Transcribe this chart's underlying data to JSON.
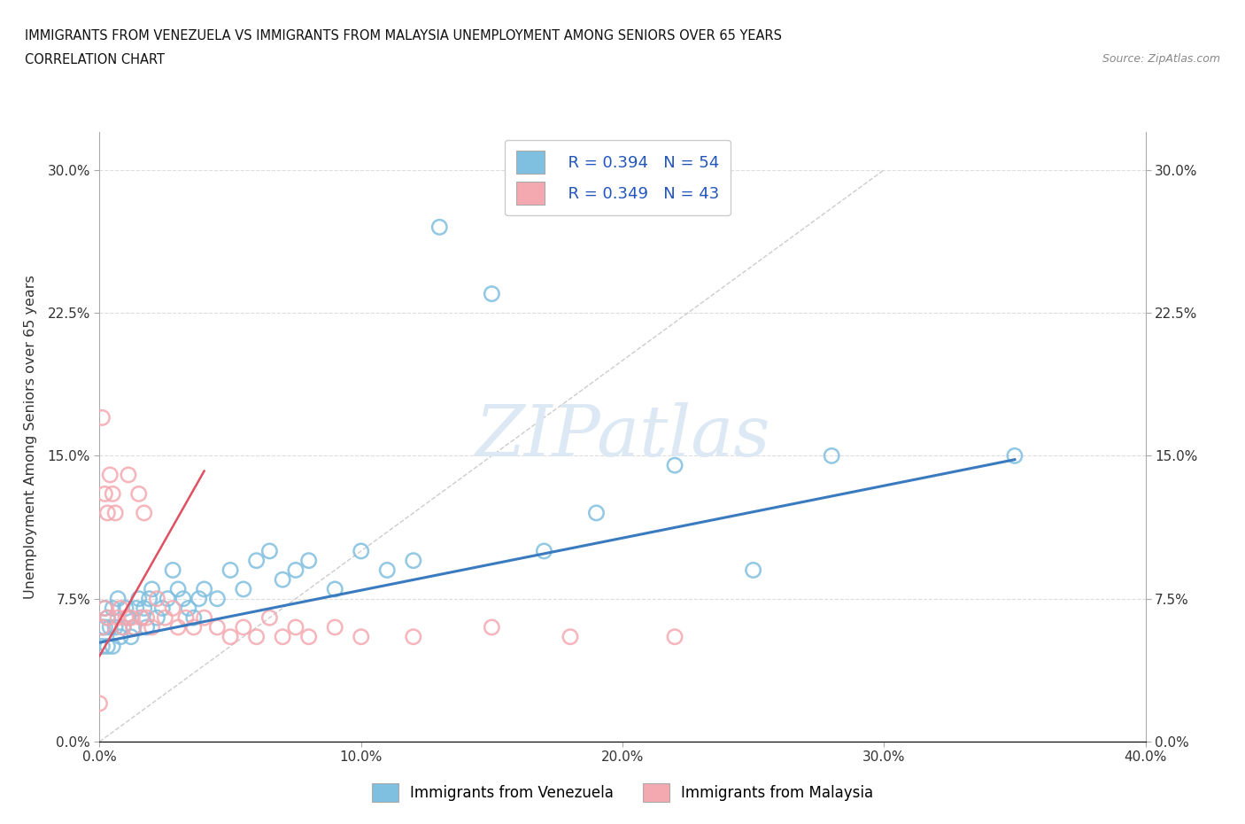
{
  "title_line1": "IMMIGRANTS FROM VENEZUELA VS IMMIGRANTS FROM MALAYSIA UNEMPLOYMENT AMONG SENIORS OVER 65 YEARS",
  "title_line2": "CORRELATION CHART",
  "source": "Source: ZipAtlas.com",
  "ylabel": "Unemployment Among Seniors over 65 years",
  "xlim": [
    0.0,
    0.4
  ],
  "ylim": [
    0.0,
    0.32
  ],
  "xticks": [
    0.0,
    0.1,
    0.2,
    0.3,
    0.4
  ],
  "yticks": [
    0.0,
    0.075,
    0.15,
    0.225,
    0.3
  ],
  "xtick_labels": [
    "0.0%",
    "10.0%",
    "20.0%",
    "30.0%",
    "40.0%"
  ],
  "ytick_labels": [
    "0.0%",
    "7.5%",
    "15.0%",
    "22.5%",
    "30.0%"
  ],
  "legend_r1": "R = 0.394",
  "legend_n1": "N = 54",
  "legend_r2": "R = 0.349",
  "legend_n2": "N = 43",
  "color_venezuela": "#7fbfdf",
  "color_malaysia": "#f4a8b0",
  "color_line_venezuela": "#3a7abf",
  "color_line_malaysia": "#e05060",
  "venezuela_x": [
    0.001,
    0.001,
    0.002,
    0.002,
    0.003,
    0.003,
    0.004,
    0.005,
    0.005,
    0.006,
    0.007,
    0.008,
    0.009,
    0.01,
    0.011,
    0.012,
    0.013,
    0.014,
    0.015,
    0.016,
    0.017,
    0.018,
    0.019,
    0.02,
    0.022,
    0.024,
    0.026,
    0.028,
    0.03,
    0.032,
    0.034,
    0.036,
    0.038,
    0.04,
    0.045,
    0.05,
    0.055,
    0.06,
    0.065,
    0.07,
    0.075,
    0.08,
    0.09,
    0.1,
    0.11,
    0.12,
    0.13,
    0.15,
    0.17,
    0.19,
    0.22,
    0.25,
    0.28,
    0.35
  ],
  "venezuela_y": [
    0.06,
    0.05,
    0.06,
    0.07,
    0.05,
    0.065,
    0.06,
    0.07,
    0.05,
    0.06,
    0.075,
    0.055,
    0.06,
    0.07,
    0.065,
    0.055,
    0.06,
    0.07,
    0.075,
    0.065,
    0.07,
    0.06,
    0.075,
    0.08,
    0.065,
    0.07,
    0.075,
    0.09,
    0.08,
    0.075,
    0.07,
    0.065,
    0.075,
    0.08,
    0.075,
    0.09,
    0.08,
    0.095,
    0.1,
    0.085,
    0.09,
    0.095,
    0.08,
    0.1,
    0.09,
    0.095,
    0.27,
    0.235,
    0.1,
    0.12,
    0.145,
    0.09,
    0.15,
    0.15
  ],
  "malaysia_x": [
    0.001,
    0.001,
    0.002,
    0.002,
    0.003,
    0.003,
    0.004,
    0.005,
    0.006,
    0.007,
    0.008,
    0.009,
    0.01,
    0.011,
    0.012,
    0.013,
    0.015,
    0.016,
    0.017,
    0.018,
    0.02,
    0.022,
    0.025,
    0.028,
    0.03,
    0.033,
    0.036,
    0.04,
    0.045,
    0.05,
    0.055,
    0.06,
    0.065,
    0.07,
    0.075,
    0.08,
    0.09,
    0.1,
    0.12,
    0.15,
    0.18,
    0.22,
    0.0
  ],
  "malaysia_y": [
    0.17,
    0.06,
    0.13,
    0.07,
    0.12,
    0.065,
    0.14,
    0.13,
    0.12,
    0.065,
    0.07,
    0.06,
    0.065,
    0.14,
    0.065,
    0.06,
    0.13,
    0.065,
    0.12,
    0.065,
    0.06,
    0.075,
    0.065,
    0.07,
    0.06,
    0.065,
    0.06,
    0.065,
    0.06,
    0.055,
    0.06,
    0.055,
    0.065,
    0.055,
    0.06,
    0.055,
    0.06,
    0.055,
    0.055,
    0.06,
    0.055,
    0.055,
    0.02
  ]
}
